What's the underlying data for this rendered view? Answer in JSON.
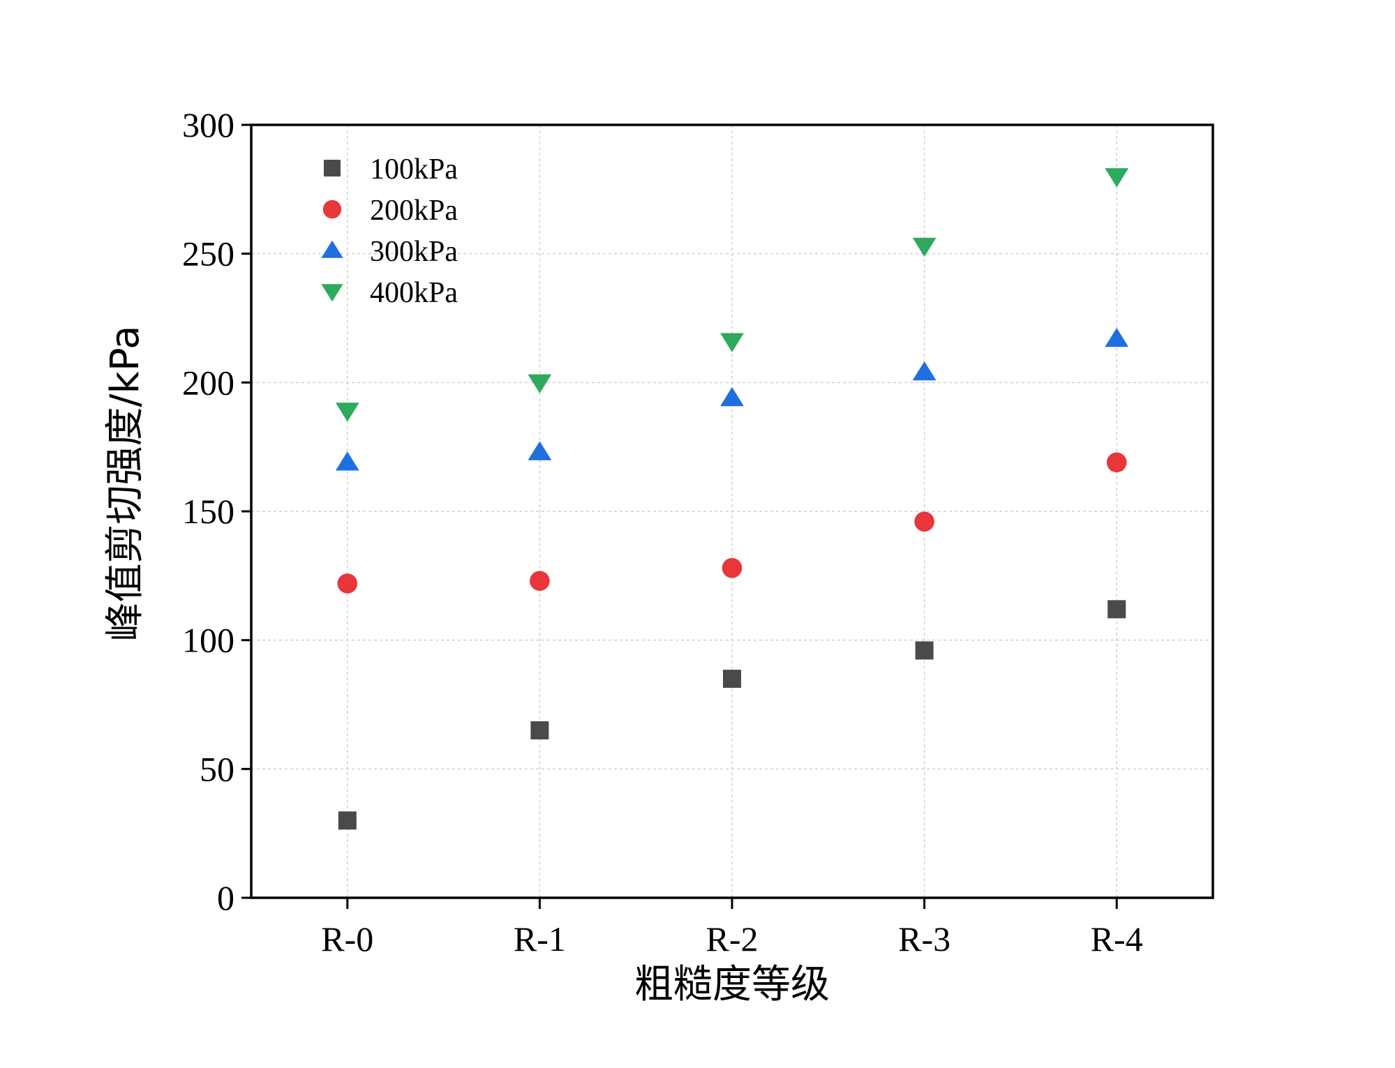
{
  "chart_data": {
    "type": "scatter",
    "title": "",
    "xlabel": "粗糙度等级",
    "ylabel": "峰值剪切强度/kPa",
    "categories": [
      "R-0",
      "R-1",
      "R-2",
      "R-3",
      "R-4"
    ],
    "ylim": [
      0,
      300
    ],
    "yticks": [
      0,
      50,
      100,
      150,
      200,
      250,
      300
    ],
    "grid": true,
    "legend_position": "top-left",
    "series": [
      {
        "name": "100kPa",
        "marker": "square",
        "color": "#4a4a4a",
        "values": [
          30,
          65,
          85,
          96,
          112
        ]
      },
      {
        "name": "200kPa",
        "marker": "circle",
        "color": "#e8363b",
        "values": [
          122,
          123,
          128,
          146,
          169
        ]
      },
      {
        "name": "300kPa",
        "marker": "triangle-up",
        "color": "#1f6fe0",
        "values": [
          169,
          173,
          194,
          204,
          217
        ]
      },
      {
        "name": "400kPa",
        "marker": "triangle-down",
        "color": "#2eaa5c",
        "values": [
          189,
          200,
          216,
          253,
          280
        ]
      }
    ]
  }
}
